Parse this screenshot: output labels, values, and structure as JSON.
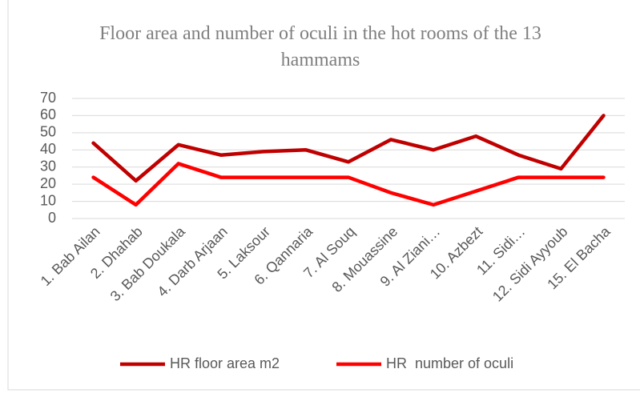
{
  "chart_data": {
    "type": "line",
    "title": "Floor area and number of oculi in the hot rooms of the 13 hammams",
    "categories": [
      "1. Bab Ailan",
      "2. Dhahab",
      "3. Bab Doukala",
      "4. Darb Arjaan",
      "5. Laksour",
      "6. Qannaria",
      "7. Al Souq",
      "8. Mouassine",
      "9. Al Ziani…",
      "10. Azbezt",
      "11. Sidi…",
      "12. Sidi Ayyoub",
      "15. El Bacha"
    ],
    "series": [
      {
        "name": "HR floor area m2",
        "color": "#c00000",
        "values": [
          44,
          22,
          43,
          37,
          39,
          40,
          33,
          46,
          40,
          48,
          37,
          29,
          60
        ]
      },
      {
        "name": "HR  number of oculi",
        "color": "#ff0000",
        "values": [
          24,
          8,
          32,
          24,
          24,
          24,
          24,
          15,
          8,
          16,
          24,
          24,
          24
        ]
      }
    ],
    "ylim": [
      0,
      70
    ],
    "yticks": [
      0,
      10,
      20,
      30,
      40,
      50,
      60,
      70
    ],
    "grid": true,
    "legend": "bottom"
  }
}
